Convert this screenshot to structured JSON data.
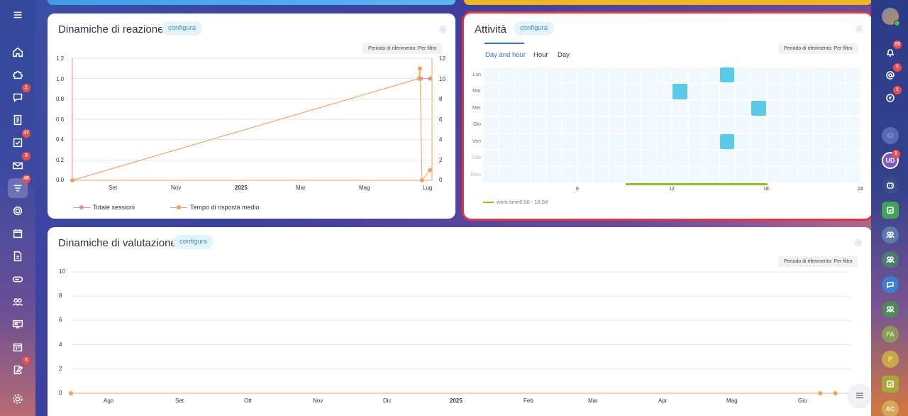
{
  "left_nav": [
    {
      "icon": "menu-icon",
      "badge": ""
    },
    {
      "icon": "home-icon",
      "badge": ""
    },
    {
      "icon": "puzzle-icon",
      "badge": ""
    },
    {
      "icon": "chat-icon",
      "badge": "1"
    },
    {
      "icon": "document-icon",
      "badge": ""
    },
    {
      "icon": "task-check-icon",
      "badge": "37"
    },
    {
      "icon": "mail-icon",
      "badge": "3"
    },
    {
      "icon": "filter-icon",
      "badge": "48"
    },
    {
      "icon": "target-icon",
      "badge": ""
    },
    {
      "icon": "calendar-icon",
      "badge": ""
    },
    {
      "icon": "file-icon",
      "badge": ""
    },
    {
      "icon": "drive-icon",
      "badge": ""
    },
    {
      "icon": "people-icon",
      "badge": ""
    },
    {
      "icon": "presentation-icon",
      "badge": ""
    },
    {
      "icon": "schedule-icon",
      "badge": ""
    },
    {
      "icon": "edit-icon",
      "badge": "3"
    },
    {
      "icon": "settings-icon",
      "badge": ""
    }
  ],
  "right_bar": {
    "bell_badge": "22",
    "at_badge": "1",
    "chat_badge": "1",
    "ud_badge": "1",
    "avatars": [
      "ID",
      "UD",
      "PA",
      "P",
      "AC"
    ]
  },
  "reaction": {
    "title": "Dinamiche di reazione",
    "configure": "configura",
    "period": "Periodo di riferimento: Per filtro",
    "y_left": [
      "1.2",
      "1.0",
      "0.8",
      "0.6",
      "0.4",
      "0.2",
      "0.0"
    ],
    "y_right": [
      "12",
      "10",
      "8",
      "6",
      "4",
      "2",
      "0"
    ],
    "x_ticks": [
      "Set",
      "Nov",
      "2025",
      "Mar",
      "Mag",
      "Lug"
    ],
    "legend": [
      "Totale sessioni",
      "Tempo di risposta medio"
    ]
  },
  "activity": {
    "title": "Attività",
    "configure": "configura",
    "period": "Periodo di riferimento: Per filtro",
    "tabs": [
      "Day and hour",
      "Hour",
      "Day"
    ],
    "days": [
      "Lun",
      "Mar",
      "Mer",
      "Gio",
      "Ven",
      "Sab",
      "Dom"
    ],
    "x_ticks": [
      "6",
      "12",
      "18",
      "24"
    ],
    "work_time": "work time9:00 - 18:00"
  },
  "rating": {
    "title": "Dinamiche di valutazione",
    "configure": "configura",
    "period": "Periodo di riferimento: Per filtro",
    "y_ticks": [
      "10",
      "8",
      "6",
      "4",
      "2",
      "0"
    ],
    "x_ticks": [
      "Ago",
      "Set",
      "Ott",
      "Nov",
      "Dic",
      "2025",
      "Feb",
      "Mar",
      "Apr",
      "Mag",
      "Giu"
    ]
  },
  "chart_data": [
    {
      "type": "line",
      "title": "Dinamiche di reazione",
      "x_ticks": [
        "Set",
        "Nov",
        "2025",
        "Mar",
        "Mag",
        "Lug"
      ],
      "ylim_left": [
        0,
        1.2
      ],
      "ylim_right": [
        0,
        12
      ],
      "series": [
        {
          "name": "Totale sessioni",
          "color": "#f08a9a",
          "axis": "left",
          "x": [
            "2024-07-20",
            "2025-06-30",
            "2025-07-02",
            "2025-07-11"
          ],
          "y": [
            0,
            1,
            1,
            1
          ]
        },
        {
          "name": "Tempo di risposta medio",
          "color": "#f5a05a",
          "axis": "right",
          "x": [
            "2024-07-20",
            "2025-06-30",
            "2025-07-01",
            "2025-07-03",
            "2025-07-11"
          ],
          "y": [
            0,
            10,
            11,
            0,
            1
          ]
        }
      ],
      "legend": "bottom-left"
    },
    {
      "type": "heatmap",
      "title": "Attività",
      "rows": [
        "Lun",
        "Mar",
        "Mer",
        "Gio",
        "Ven",
        "Sab",
        "Dom"
      ],
      "columns": 24,
      "active_cells": [
        {
          "day": "Lun",
          "hour": 15
        },
        {
          "day": "Mar",
          "hour": 12
        },
        {
          "day": "Mer",
          "hour": 17
        },
        {
          "day": "Ven",
          "hour": 15
        }
      ],
      "work_hours": [
        9,
        18
      ],
      "work_color": "#8cc21f",
      "cell_color": "#f0f9fd",
      "active_color": "#59cbea"
    },
    {
      "type": "line",
      "title": "Dinamiche di valutazione",
      "x_ticks": [
        "Ago",
        "Set",
        "Ott",
        "Nov",
        "Dic",
        "2025",
        "Feb",
        "Mar",
        "Apr",
        "Mag",
        "Giu"
      ],
      "ylim": [
        0,
        10
      ],
      "series": [
        {
          "color": "#f5a05a",
          "x": [
            "2024-07-20",
            "2025-07-01",
            "2025-07-08"
          ],
          "y": [
            0,
            0,
            0
          ]
        }
      ]
    }
  ]
}
